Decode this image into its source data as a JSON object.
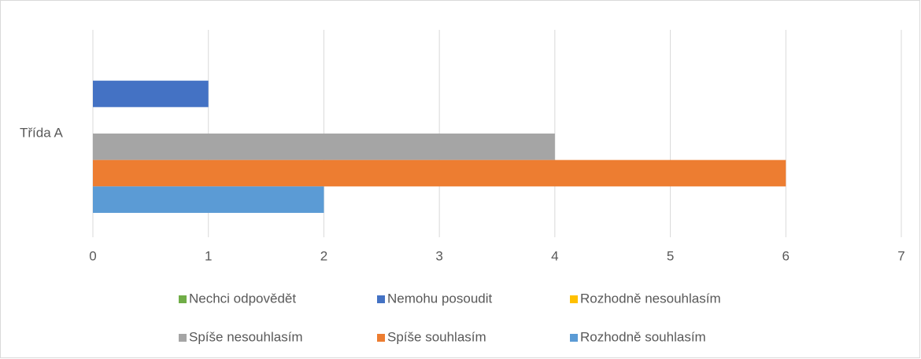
{
  "chart_data": {
    "type": "bar",
    "orientation": "horizontal",
    "categories": [
      "Třída A"
    ],
    "series": [
      {
        "name": "Nechci odpovědět",
        "color": "#70ad47",
        "values": [
          0
        ]
      },
      {
        "name": "Nemohu posoudit",
        "color": "#4472c4",
        "values": [
          1
        ]
      },
      {
        "name": "Rozhodně nesouhlasím",
        "color": "#ffc000",
        "values": [
          0
        ]
      },
      {
        "name": "Spíše nesouhlasím",
        "color": "#a5a5a5",
        "values": [
          4
        ]
      },
      {
        "name": "Spíše souhlasím",
        "color": "#ed7d31",
        "values": [
          6
        ]
      },
      {
        "name": "Rozhodně souhlasím",
        "color": "#5b9bd5",
        "values": [
          2
        ]
      }
    ],
    "xlim": [
      0,
      7
    ],
    "xticks": [
      0,
      1,
      2,
      3,
      4,
      5,
      6,
      7
    ],
    "grid": true,
    "legend": "bottom"
  }
}
